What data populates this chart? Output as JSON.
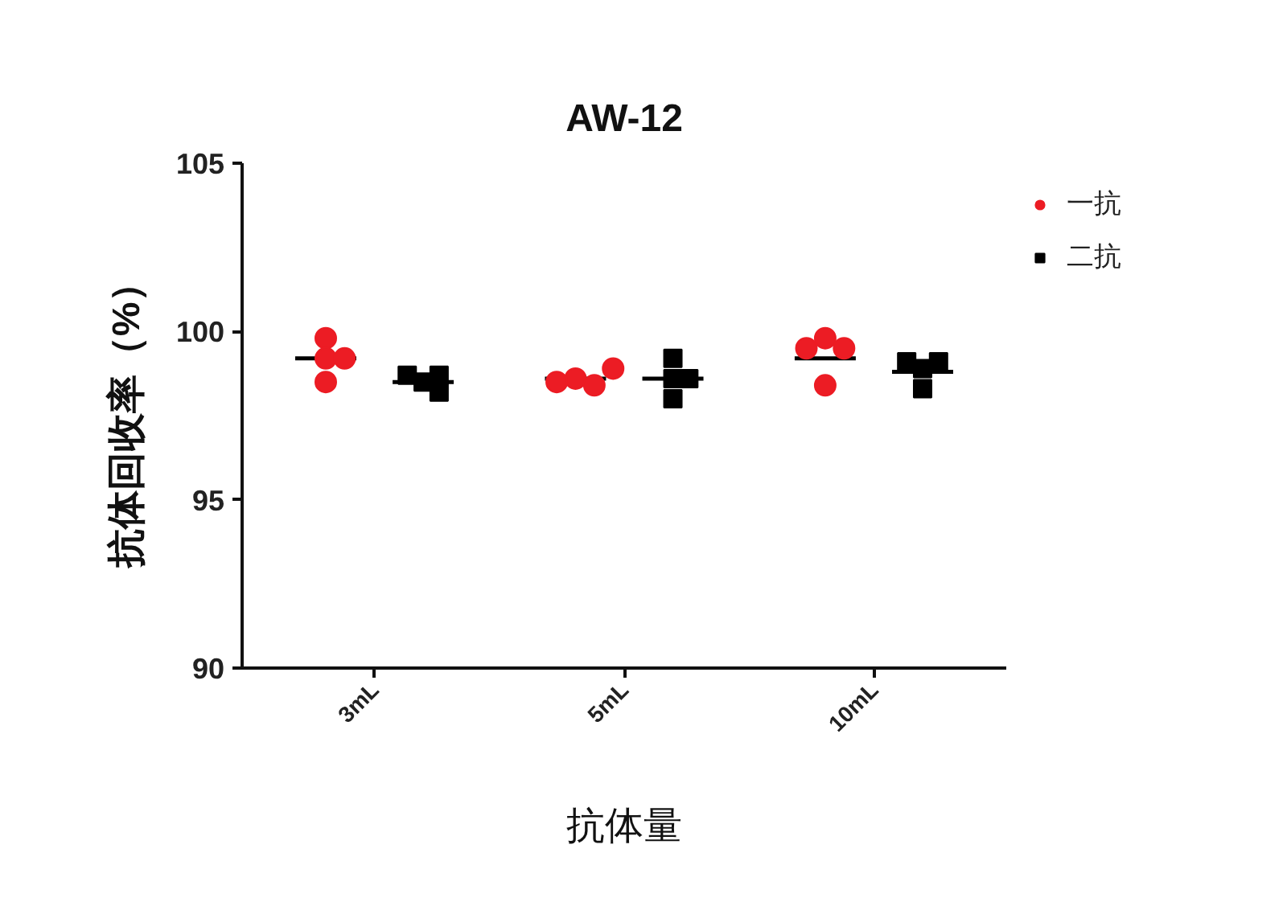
{
  "chart_data": {
    "type": "scatter",
    "title": "AW-12",
    "xlabel": "抗体量",
    "ylabel": "抗体回收率（%）",
    "categories": [
      "3mL",
      "5mL",
      "10mL"
    ],
    "ylim": [
      90,
      105
    ],
    "yticks": [
      90,
      95,
      100,
      105
    ],
    "legend": "top right",
    "series": [
      {
        "name": "一抗",
        "color": "#ec1c24",
        "marker": "circle",
        "x": [
          "3mL",
          "3mL",
          "3mL",
          "3mL",
          "5mL",
          "5mL",
          "5mL",
          "5mL",
          "10mL",
          "10mL",
          "10mL",
          "10mL"
        ],
        "values": [
          99.8,
          99.2,
          99.2,
          98.5,
          98.6,
          98.4,
          98.5,
          98.9,
          99.8,
          99.5,
          99.5,
          98.4
        ]
      },
      {
        "name": "二抗",
        "color": "#000000",
        "marker": "square",
        "x": [
          "3mL",
          "3mL",
          "3mL",
          "3mL",
          "5mL",
          "5mL",
          "5mL",
          "5mL",
          "10mL",
          "10mL",
          "10mL",
          "10mL"
        ],
        "values": [
          98.5,
          98.7,
          98.7,
          98.2,
          99.2,
          98.6,
          98.6,
          98.0,
          98.9,
          99.1,
          99.1,
          98.3
        ]
      },
      {
        "type": "bar",
        "color": "#000000",
        "x": [
          "3mL",
          "5mL",
          "10mL"
        ],
        "base": [
          99.2,
          98.6,
          99.2
        ],
        "values": [
          0,
          0,
          0
        ]
      },
      {
        "type": "bar",
        "color": "#000000",
        "x": [
          "3mL",
          "5mL",
          "10mL"
        ],
        "base": [
          98.5,
          98.6,
          98.8
        ],
        "values": [
          0,
          0,
          0
        ]
      }
    ]
  }
}
